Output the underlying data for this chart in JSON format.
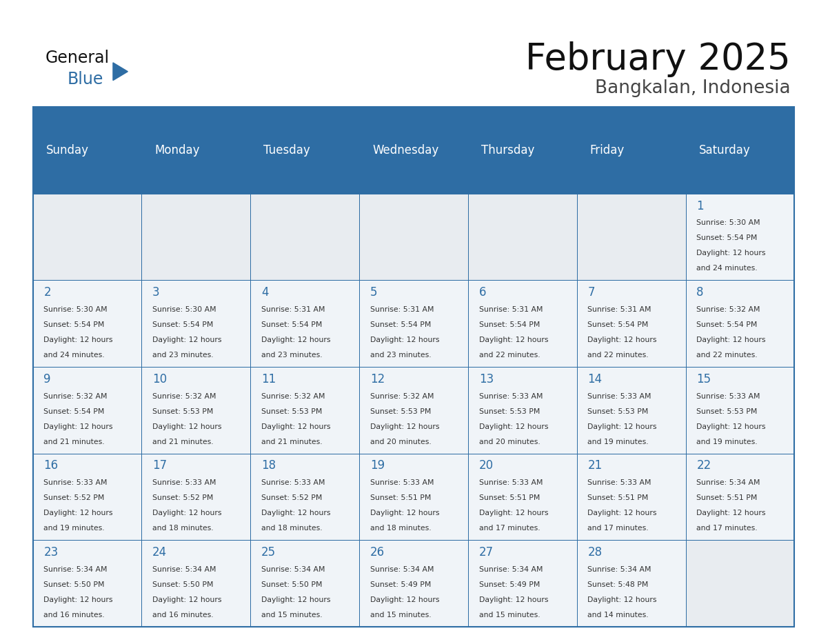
{
  "title": "February 2025",
  "subtitle": "Bangkalan, Indonesia",
  "header_bg": "#2E6DA4",
  "header_text_color": "#FFFFFF",
  "border_color": "#2E6DA4",
  "cell_bg": "#f0f4f8",
  "empty_cell_bg": "#e8ecf0",
  "day_headers": [
    "Sunday",
    "Monday",
    "Tuesday",
    "Wednesday",
    "Thursday",
    "Friday",
    "Saturday"
  ],
  "title_color": "#111111",
  "subtitle_color": "#444444",
  "date_color": "#2E6DA4",
  "text_color": "#333333",
  "logo_general_color": "#111111",
  "logo_blue_color": "#2E6DA4",
  "calendar_data": [
    [
      null,
      null,
      null,
      null,
      null,
      null,
      {
        "day": 1,
        "sunrise": "5:30 AM",
        "sunset": "5:54 PM",
        "daylight_line2": "and 24 minutes."
      }
    ],
    [
      {
        "day": 2,
        "sunrise": "5:30 AM",
        "sunset": "5:54 PM",
        "daylight_line2": "and 24 minutes."
      },
      {
        "day": 3,
        "sunrise": "5:30 AM",
        "sunset": "5:54 PM",
        "daylight_line2": "and 23 minutes."
      },
      {
        "day": 4,
        "sunrise": "5:31 AM",
        "sunset": "5:54 PM",
        "daylight_line2": "and 23 minutes."
      },
      {
        "day": 5,
        "sunrise": "5:31 AM",
        "sunset": "5:54 PM",
        "daylight_line2": "and 23 minutes."
      },
      {
        "day": 6,
        "sunrise": "5:31 AM",
        "sunset": "5:54 PM",
        "daylight_line2": "and 22 minutes."
      },
      {
        "day": 7,
        "sunrise": "5:31 AM",
        "sunset": "5:54 PM",
        "daylight_line2": "and 22 minutes."
      },
      {
        "day": 8,
        "sunrise": "5:32 AM",
        "sunset": "5:54 PM",
        "daylight_line2": "and 22 minutes."
      }
    ],
    [
      {
        "day": 9,
        "sunrise": "5:32 AM",
        "sunset": "5:54 PM",
        "daylight_line2": "and 21 minutes."
      },
      {
        "day": 10,
        "sunrise": "5:32 AM",
        "sunset": "5:53 PM",
        "daylight_line2": "and 21 minutes."
      },
      {
        "day": 11,
        "sunrise": "5:32 AM",
        "sunset": "5:53 PM",
        "daylight_line2": "and 21 minutes."
      },
      {
        "day": 12,
        "sunrise": "5:32 AM",
        "sunset": "5:53 PM",
        "daylight_line2": "and 20 minutes."
      },
      {
        "day": 13,
        "sunrise": "5:33 AM",
        "sunset": "5:53 PM",
        "daylight_line2": "and 20 minutes."
      },
      {
        "day": 14,
        "sunrise": "5:33 AM",
        "sunset": "5:53 PM",
        "daylight_line2": "and 19 minutes."
      },
      {
        "day": 15,
        "sunrise": "5:33 AM",
        "sunset": "5:53 PM",
        "daylight_line2": "and 19 minutes."
      }
    ],
    [
      {
        "day": 16,
        "sunrise": "5:33 AM",
        "sunset": "5:52 PM",
        "daylight_line2": "and 19 minutes."
      },
      {
        "day": 17,
        "sunrise": "5:33 AM",
        "sunset": "5:52 PM",
        "daylight_line2": "and 18 minutes."
      },
      {
        "day": 18,
        "sunrise": "5:33 AM",
        "sunset": "5:52 PM",
        "daylight_line2": "and 18 minutes."
      },
      {
        "day": 19,
        "sunrise": "5:33 AM",
        "sunset": "5:51 PM",
        "daylight_line2": "and 18 minutes."
      },
      {
        "day": 20,
        "sunrise": "5:33 AM",
        "sunset": "5:51 PM",
        "daylight_line2": "and 17 minutes."
      },
      {
        "day": 21,
        "sunrise": "5:33 AM",
        "sunset": "5:51 PM",
        "daylight_line2": "and 17 minutes."
      },
      {
        "day": 22,
        "sunrise": "5:34 AM",
        "sunset": "5:51 PM",
        "daylight_line2": "and 17 minutes."
      }
    ],
    [
      {
        "day": 23,
        "sunrise": "5:34 AM",
        "sunset": "5:50 PM",
        "daylight_line2": "and 16 minutes."
      },
      {
        "day": 24,
        "sunrise": "5:34 AM",
        "sunset": "5:50 PM",
        "daylight_line2": "and 16 minutes."
      },
      {
        "day": 25,
        "sunrise": "5:34 AM",
        "sunset": "5:50 PM",
        "daylight_line2": "and 15 minutes."
      },
      {
        "day": 26,
        "sunrise": "5:34 AM",
        "sunset": "5:49 PM",
        "daylight_line2": "and 15 minutes."
      },
      {
        "day": 27,
        "sunrise": "5:34 AM",
        "sunset": "5:49 PM",
        "daylight_line2": "and 15 minutes."
      },
      {
        "day": 28,
        "sunrise": "5:34 AM",
        "sunset": "5:48 PM",
        "daylight_line2": "and 14 minutes."
      },
      null
    ]
  ]
}
